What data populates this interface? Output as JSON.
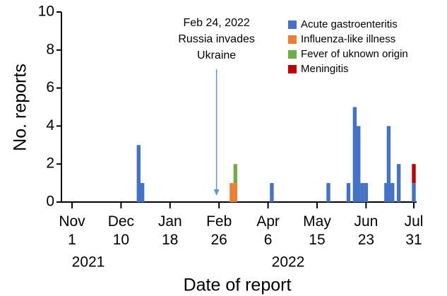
{
  "chart_data": {
    "type": "bar",
    "stacked": true,
    "xlabel": "Date of report",
    "ylabel": "No. reports",
    "x": [
      "2021-12-24",
      "2021-12-27",
      "2022-03-08",
      "2022-03-11",
      "2022-04-09",
      "2022-05-24",
      "2022-06-09",
      "2022-06-14",
      "2022-06-17",
      "2022-06-20",
      "2022-06-23",
      "2022-07-09",
      "2022-07-11",
      "2022-07-14",
      "2022-07-19",
      "2022-07-31"
    ],
    "series": [
      {
        "name": "Acute gastroenteritis",
        "color": "#4472c4",
        "values": [
          3,
          1,
          0,
          0,
          1,
          1,
          1,
          5,
          4,
          1,
          1,
          1,
          4,
          1,
          2,
          1
        ]
      },
      {
        "name": "Influenza-like illness",
        "color": "#ed7d31",
        "values": [
          0,
          0,
          1,
          1,
          0,
          0,
          0,
          0,
          0,
          0,
          0,
          0,
          0,
          0,
          0,
          0
        ]
      },
      {
        "name": "Fever of uknown origin",
        "color": "#70ad47",
        "values": [
          0,
          0,
          0,
          1,
          0,
          0,
          0,
          0,
          0,
          0,
          0,
          0,
          0,
          0,
          0,
          0
        ]
      },
      {
        "name": "Meningitis",
        "color": "#c00000",
        "values": [
          0,
          0,
          0,
          0,
          0,
          0,
          0,
          0,
          0,
          0,
          0,
          0,
          0,
          0,
          0,
          1
        ]
      }
    ],
    "xlim": [
      "2021-11-01",
      "2022-07-31"
    ],
    "xticks": [
      {
        "value": "2021-11-01",
        "label": [
          "Nov",
          "1"
        ]
      },
      {
        "value": "2021-12-10",
        "label": [
          "Dec",
          "10"
        ]
      },
      {
        "value": "2022-01-18",
        "label": [
          "Jan",
          "18"
        ]
      },
      {
        "value": "2022-02-26",
        "label": [
          "Feb",
          "26"
        ]
      },
      {
        "value": "2022-04-06",
        "label": [
          "Apr",
          "6"
        ]
      },
      {
        "value": "2022-05-15",
        "label": [
          "May",
          "15"
        ]
      },
      {
        "value": "2022-06-23",
        "label": [
          "Jun",
          "23"
        ]
      },
      {
        "value": "2022-07-31",
        "label": [
          "Jul",
          "31"
        ]
      }
    ],
    "year_labels": [
      "2021",
      "2022"
    ],
    "ylim": [
      0,
      10
    ],
    "yticks": [
      0,
      2,
      4,
      6,
      8,
      10
    ],
    "annotation": {
      "x": "2022-02-24",
      "text": [
        "Feb 24, 2022",
        "Russia invades",
        "Ukraine"
      ]
    },
    "legend": "top-right"
  }
}
